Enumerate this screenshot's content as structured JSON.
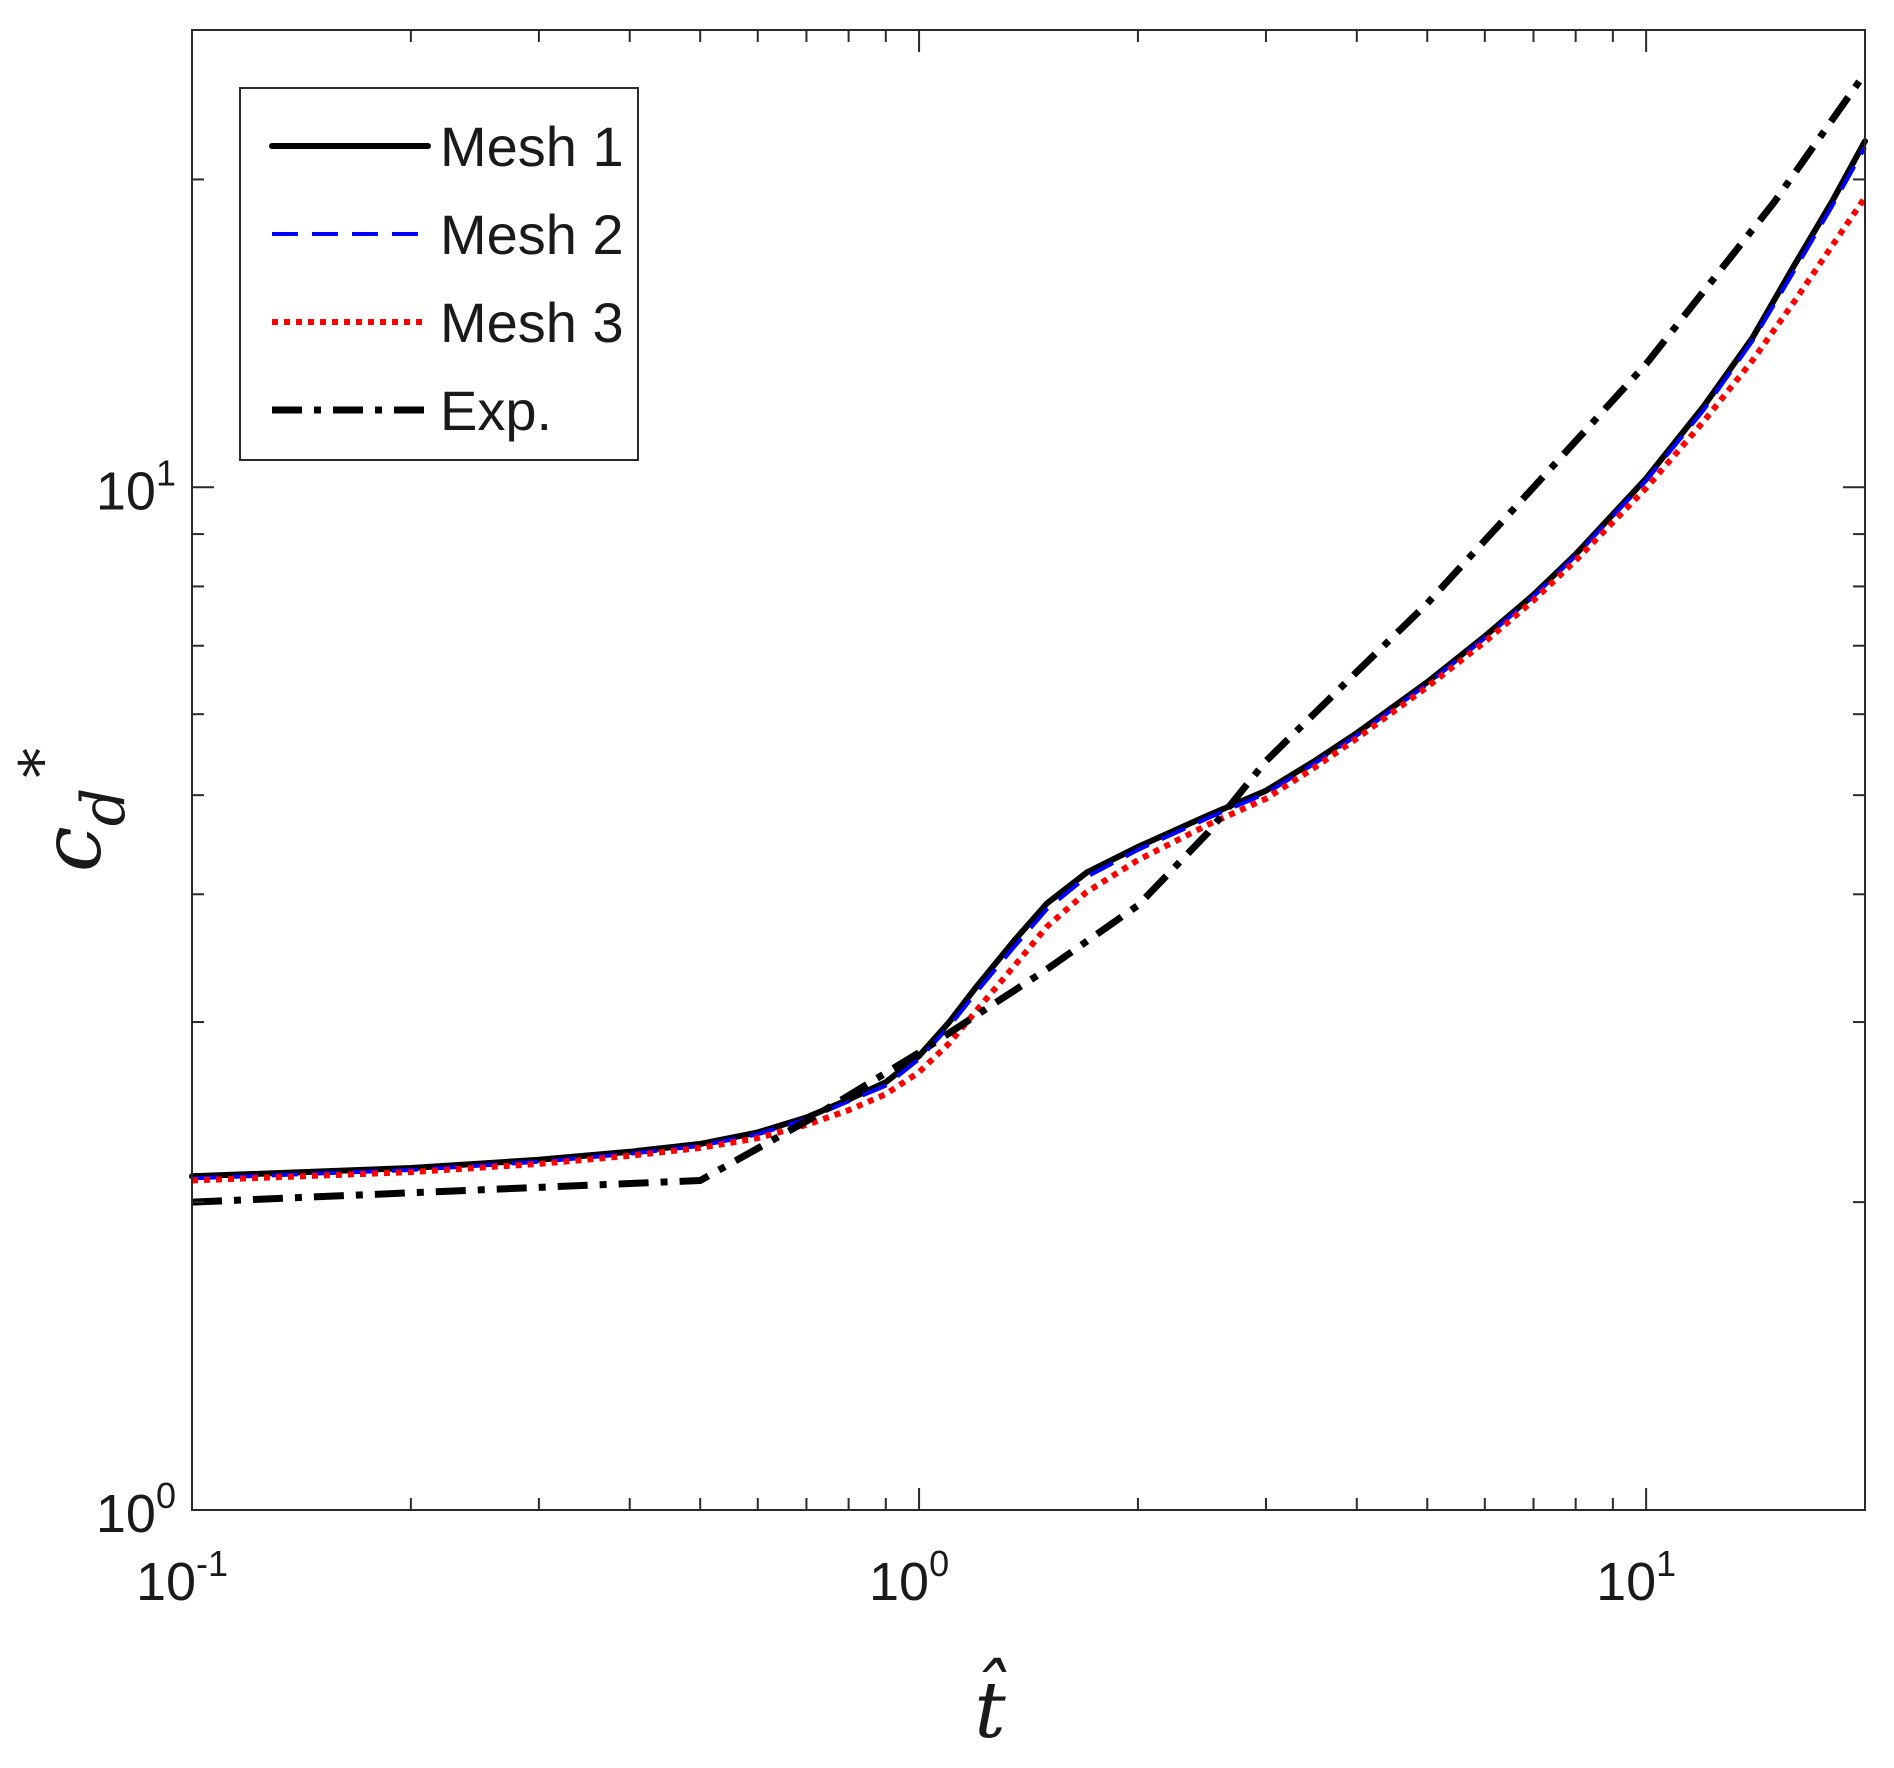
{
  "chart_data": {
    "type": "line",
    "xlabel": "t̂",
    "ylabel": "c_d*",
    "ylabel_parts": {
      "base": "c",
      "sub": "d",
      "sup": "*"
    },
    "xscale": "log",
    "yscale": "log",
    "xlim": [
      0.1,
      20
    ],
    "ylim": [
      1,
      28
    ],
    "x_ticks": [
      {
        "value": 0.1,
        "base": "10",
        "exp": "-1"
      },
      {
        "value": 1,
        "base": "10",
        "exp": "0"
      },
      {
        "value": 10,
        "base": "10",
        "exp": "1"
      }
    ],
    "y_ticks": [
      {
        "value": 1,
        "base": "10",
        "exp": "0"
      },
      {
        "value": 10,
        "base": "10",
        "exp": "1"
      }
    ],
    "grid": false,
    "legend_position": "top-left",
    "series": [
      {
        "name": "Mesh 1",
        "color": "#000000",
        "style": "solid",
        "x": [
          0.1,
          0.2,
          0.3,
          0.4,
          0.5,
          0.6,
          0.7,
          0.8,
          0.9,
          1.0,
          1.1,
          1.2,
          1.35,
          1.5,
          1.7,
          2.0,
          2.5,
          3.0,
          3.5,
          4.0,
          5.0,
          6.0,
          7.0,
          8.0,
          10.0,
          12.0,
          14.0,
          16.0,
          18.0,
          20.0
        ],
        "y": [
          2.12,
          2.16,
          2.2,
          2.24,
          2.28,
          2.34,
          2.42,
          2.52,
          2.62,
          2.78,
          3.0,
          3.25,
          3.6,
          3.92,
          4.2,
          4.45,
          4.78,
          5.05,
          5.4,
          5.75,
          6.45,
          7.15,
          7.85,
          8.6,
          10.2,
          12.0,
          14.0,
          16.5,
          19.0,
          21.8
        ]
      },
      {
        "name": "Mesh 2",
        "color": "#0000ff",
        "style": "dashed",
        "x": [
          0.1,
          0.2,
          0.3,
          0.4,
          0.5,
          0.6,
          0.7,
          0.8,
          0.9,
          1.0,
          1.1,
          1.2,
          1.35,
          1.5,
          1.7,
          2.0,
          2.5,
          3.0,
          3.5,
          4.0,
          5.0,
          6.0,
          7.0,
          8.0,
          10.0,
          12.0,
          14.0,
          16.0,
          18.0,
          20.0
        ],
        "y": [
          2.11,
          2.15,
          2.19,
          2.23,
          2.27,
          2.33,
          2.41,
          2.51,
          2.6,
          2.76,
          2.97,
          3.21,
          3.55,
          3.87,
          4.16,
          4.42,
          4.75,
          5.02,
          5.37,
          5.72,
          6.42,
          7.12,
          7.82,
          8.57,
          10.15,
          11.9,
          13.9,
          16.3,
          18.8,
          21.5
        ]
      },
      {
        "name": "Mesh 3",
        "color": "#ff0000",
        "style": "dotted",
        "x": [
          0.1,
          0.2,
          0.3,
          0.4,
          0.5,
          0.6,
          0.7,
          0.8,
          0.9,
          1.0,
          1.1,
          1.2,
          1.35,
          1.5,
          1.7,
          2.0,
          2.5,
          3.0,
          3.5,
          4.0,
          5.0,
          6.0,
          7.0,
          8.0,
          10.0,
          12.0,
          14.0,
          16.0,
          18.0,
          20.0
        ],
        "y": [
          2.1,
          2.14,
          2.18,
          2.22,
          2.26,
          2.31,
          2.38,
          2.46,
          2.55,
          2.68,
          2.86,
          3.08,
          3.4,
          3.72,
          4.02,
          4.32,
          4.68,
          4.96,
          5.32,
          5.68,
          6.38,
          7.06,
          7.75,
          8.48,
          9.98,
          11.6,
          13.3,
          15.2,
          17.2,
          19.2
        ]
      },
      {
        "name": "Exp.",
        "color": "#000000",
        "style": "dashdot",
        "x": [
          0.1,
          0.5,
          0.7,
          1.0,
          1.5,
          2.0,
          2.5,
          3.0,
          4.0,
          5.0,
          7.0,
          10.0,
          15.0,
          20.0
        ],
        "y": [
          2.0,
          2.1,
          2.4,
          2.8,
          3.38,
          3.9,
          4.6,
          5.4,
          6.6,
          7.7,
          10.0,
          13.2,
          19.0,
          25.4
        ]
      }
    ]
  }
}
